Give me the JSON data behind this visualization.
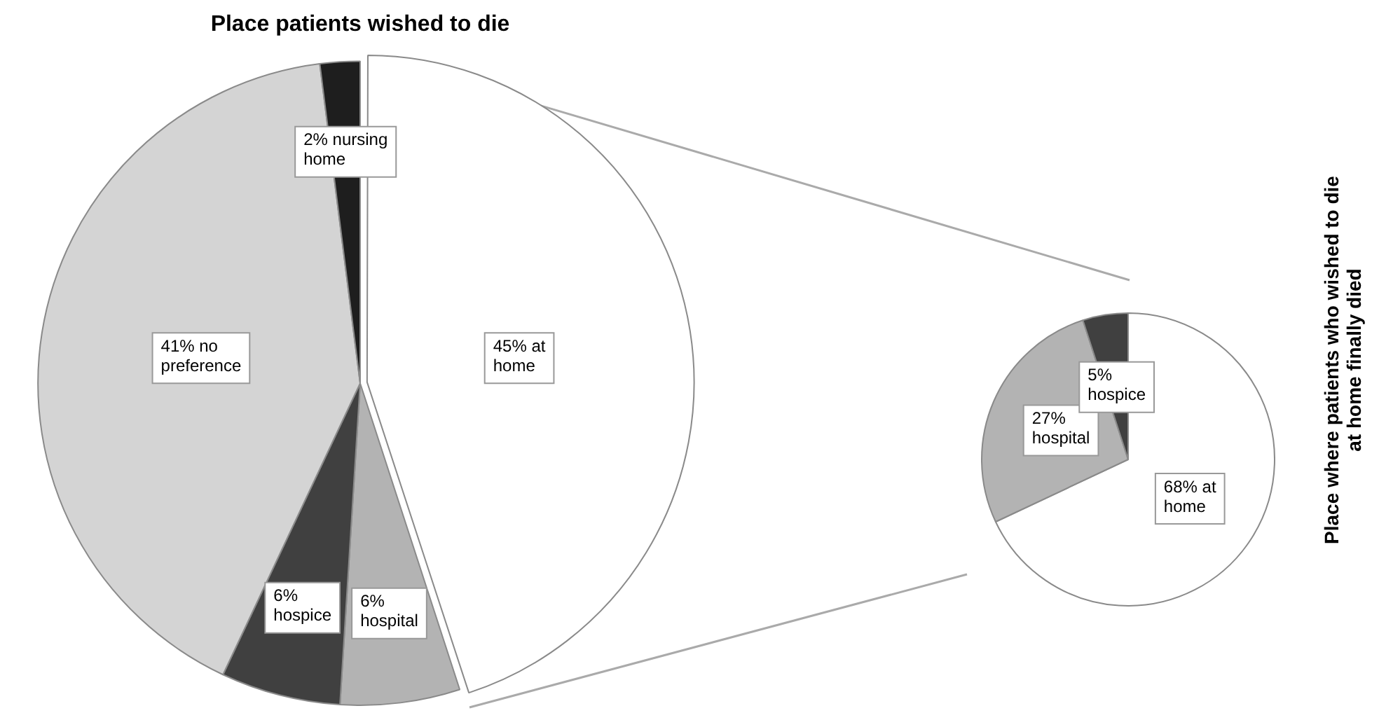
{
  "chart_data": [
    {
      "type": "pie",
      "title": "Place patients wished to die",
      "categories": [
        "at home",
        "hospital",
        "hospice",
        "no preference",
        "nursing home"
      ],
      "values": [
        45,
        6,
        6,
        41,
        2
      ],
      "colors": [
        "#ffffff",
        "#b3b3b3",
        "#404040",
        "#d4d4d4",
        "#1e1e1e"
      ],
      "value_labels": [
        "45%",
        "6%",
        "6%",
        "41%",
        "2%"
      ],
      "legend": false
    },
    {
      "type": "pie",
      "title": "Place where patients who wished to die at home finally died",
      "categories": [
        "at home",
        "hospital",
        "hospice"
      ],
      "values": [
        68,
        27,
        5
      ],
      "colors": [
        "#ffffff",
        "#b3b3b3",
        "#404040"
      ],
      "value_labels": [
        "68%",
        "27%",
        "5%"
      ],
      "legend": false
    }
  ]
}
